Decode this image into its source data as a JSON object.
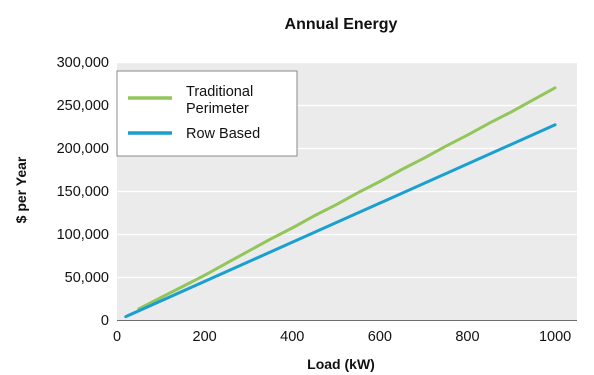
{
  "chart_data": {
    "type": "line",
    "title": "Annual Energy",
    "xlabel": "Load (kW)",
    "ylabel": "$ per Year",
    "xlim": [
      0,
      1050
    ],
    "ylim": [
      0,
      300000
    ],
    "x_ticks": [
      0,
      200,
      400,
      600,
      800,
      1000
    ],
    "x_tick_labels": [
      "0",
      "200",
      "400",
      "600",
      "800",
      "1000"
    ],
    "y_ticks": [
      0,
      50000,
      100000,
      150000,
      200000,
      250000,
      300000
    ],
    "y_tick_labels": [
      "0",
      "50,000",
      "100,000",
      "150,000",
      "200,000",
      "250,000",
      "300,000"
    ],
    "grid": "horizontal",
    "legend_position": "top-left",
    "series": [
      {
        "name": "Traditional Perimeter",
        "legend_lines": [
          "Traditional",
          "Perimeter"
        ],
        "color": "#92c65b",
        "x": [
          50,
          100,
          150,
          200,
          250,
          300,
          350,
          400,
          450,
          500,
          550,
          600,
          650,
          700,
          750,
          800,
          850,
          900,
          950,
          1000
        ],
        "y": [
          13000,
          26000,
          39000,
          52000,
          66000,
          80000,
          94000,
          107000,
          121000,
          134000,
          148000,
          161000,
          175000,
          188000,
          202000,
          215000,
          229000,
          242000,
          256000,
          270000
        ]
      },
      {
        "name": "Row Based",
        "legend_lines": [
          "Row Based"
        ],
        "color": "#1a9fd1",
        "x": [
          20,
          1000
        ],
        "y": [
          4000,
          227000
        ]
      }
    ]
  }
}
